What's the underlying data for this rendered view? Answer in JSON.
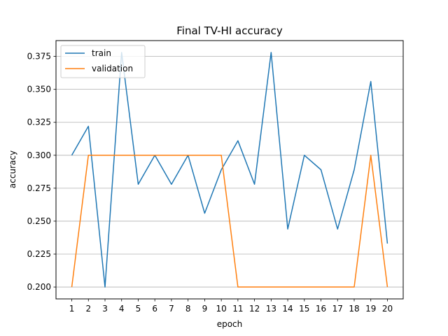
{
  "chart_data": {
    "type": "line",
    "title": "Final TV-HI accuracy",
    "xlabel": "epoch",
    "ylabel": "accuracy",
    "x": [
      1,
      2,
      3,
      4,
      5,
      6,
      7,
      8,
      9,
      10,
      11,
      12,
      13,
      14,
      15,
      16,
      17,
      18,
      19,
      20
    ],
    "xlim": [
      0.05,
      20.95
    ],
    "ylim": [
      0.191,
      0.387
    ],
    "yticks": [
      0.2,
      0.225,
      0.25,
      0.275,
      0.3,
      0.325,
      0.35,
      0.375
    ],
    "ytick_labels": [
      "0.200",
      "0.225",
      "0.250",
      "0.275",
      "0.300",
      "0.325",
      "0.350",
      "0.375"
    ],
    "grid": "y",
    "legend": "upper-left",
    "series": [
      {
        "name": "train",
        "color": "#1f77b4",
        "values": [
          0.3,
          0.322,
          0.2,
          0.378,
          0.278,
          0.3,
          0.278,
          0.3,
          0.256,
          0.289,
          0.311,
          0.278,
          0.378,
          0.244,
          0.3,
          0.289,
          0.244,
          0.289,
          0.356,
          0.233
        ]
      },
      {
        "name": "validation",
        "color": "#ff7f0e",
        "values": [
          0.2,
          0.3,
          0.3,
          0.3,
          0.3,
          0.3,
          0.3,
          0.3,
          0.3,
          0.3,
          0.2,
          0.2,
          0.2,
          0.2,
          0.2,
          0.2,
          0.2,
          0.2,
          0.3,
          0.2
        ]
      }
    ]
  }
}
